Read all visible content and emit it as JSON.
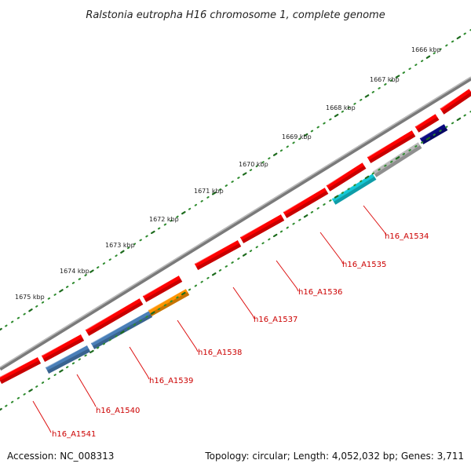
{
  "title": "Ralstonia eutropha H16 chromosome 1, complete genome",
  "footer": {
    "accession": "Accession: NC_008313",
    "summary": "Topology: circular; Length: 4,052,032 bp; Genes: 3,711"
  },
  "colors": {
    "backbone": "#7a7a7a",
    "tick_major": "#1d6b1d",
    "tick_minor": "#2e8b2e",
    "label": "#cc0000",
    "leader": "#dd1111",
    "gene_red": "#ff0000",
    "gene_steelblue": "#4a7fb8",
    "gene_orange": "#ff9500",
    "gene_cyan": "#14c8d6",
    "gene_silver": "#b8b8b8",
    "gene_navy": "#0a0a80"
  },
  "kbp_labels": [
    "1666 kbp",
    "1667 kbp",
    "1668 kbp",
    "1669 kbp",
    "1670 kbp",
    "1671 kbp",
    "1672 kbp",
    "1673 kbp",
    "1674 kbp",
    "1675 kbp"
  ],
  "gene_labels": [
    "h16_A1534",
    "h16_A1535",
    "h16_A1536",
    "h16_A1537",
    "h16_A1538",
    "h16_A1539",
    "h16_A1540",
    "h16_A1541"
  ],
  "genes": [
    {
      "id": "outer-1",
      "color": "gene_red"
    },
    {
      "id": "outer-2",
      "color": "gene_red"
    },
    {
      "id": "outer-3",
      "color": "gene_red"
    },
    {
      "id": "outer-4",
      "color": "gene_red"
    },
    {
      "id": "outer-5",
      "color": "gene_red"
    },
    {
      "id": "outer-6",
      "color": "gene_red"
    },
    {
      "id": "outer-7",
      "color": "gene_red"
    },
    {
      "id": "outer-8",
      "color": "gene_red"
    },
    {
      "id": "outer-9",
      "color": "gene_red"
    },
    {
      "id": "outer-10",
      "color": "gene_red"
    },
    {
      "id": "outer-11",
      "color": "gene_red"
    },
    {
      "id": "inner-1",
      "color": "gene_steelblue"
    },
    {
      "id": "inner-2",
      "color": "gene_steelblue"
    },
    {
      "id": "inner-3",
      "color": "gene_orange"
    },
    {
      "id": "inner-4",
      "color": "gene_cyan"
    },
    {
      "id": "inner-5",
      "color": "gene_silver"
    },
    {
      "id": "inner-6",
      "color": "gene_navy"
    }
  ]
}
